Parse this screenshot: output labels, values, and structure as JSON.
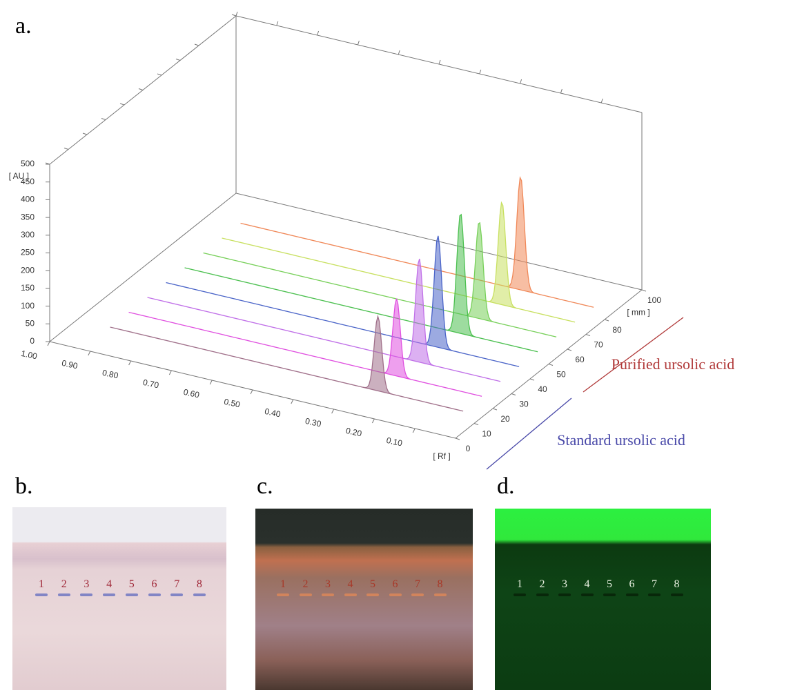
{
  "chart_data": {
    "type": "densitogram3d",
    "panel_labels": [
      "a.",
      "b.",
      "c.",
      "d."
    ],
    "y_label": "[ AU ]",
    "x_label": "[ Rf ]",
    "z_label": "[ mm ]",
    "ylim": [
      0,
      500
    ],
    "yticks": [
      0,
      50,
      100,
      150,
      200,
      250,
      300,
      350,
      400,
      450,
      500
    ],
    "xlim": [
      1.0,
      0.0
    ],
    "xticks": [
      {
        "value": 1.0,
        "label": "1.00"
      },
      {
        "value": 0.9,
        "label": "0.90"
      },
      {
        "value": 0.8,
        "label": "0.80"
      },
      {
        "value": 0.7,
        "label": "0.70"
      },
      {
        "value": 0.6,
        "label": "0.60"
      },
      {
        "value": 0.5,
        "label": "0.50"
      },
      {
        "value": 0.4,
        "label": "0.40"
      },
      {
        "value": 0.3,
        "label": "0.30"
      },
      {
        "value": 0.2,
        "label": "0.20"
      },
      {
        "value": 0.1,
        "label": "0.10"
      }
    ],
    "zlim": [
      0,
      100
    ],
    "zticks": [
      0,
      10,
      20,
      30,
      40,
      50,
      60,
      70,
      80,
      100
    ],
    "tracks": [
      {
        "color": "#a0708a",
        "mm": 15,
        "peak_rf": 0.26,
        "peak_au": 210
      },
      {
        "color": "#e050e0",
        "mm": 25,
        "peak_rf": 0.26,
        "peak_au": 218
      },
      {
        "color": "#c070e8",
        "mm": 35,
        "peak_rf": 0.25,
        "peak_au": 292
      },
      {
        "color": "#4a64c8",
        "mm": 45,
        "peak_rf": 0.25,
        "peak_au": 315
      },
      {
        "color": "#4cc050",
        "mm": 55,
        "peak_rf": 0.24,
        "peak_au": 340
      },
      {
        "color": "#78d05a",
        "mm": 65,
        "peak_rf": 0.24,
        "peak_au": 274
      },
      {
        "color": "#c8e060",
        "mm": 75,
        "peak_rf": 0.23,
        "peak_au": 290
      },
      {
        "color": "#f08858",
        "mm": 85,
        "peak_rf": 0.23,
        "peak_au": 319
      }
    ],
    "legend": [
      {
        "name": "Purified ursolic acid",
        "color": "#b03838"
      },
      {
        "name": "Standard ursolic acid",
        "color": "#4848a8"
      }
    ],
    "lanes": [
      "1",
      "2",
      "3",
      "4",
      "5",
      "6",
      "7",
      "8"
    ]
  }
}
